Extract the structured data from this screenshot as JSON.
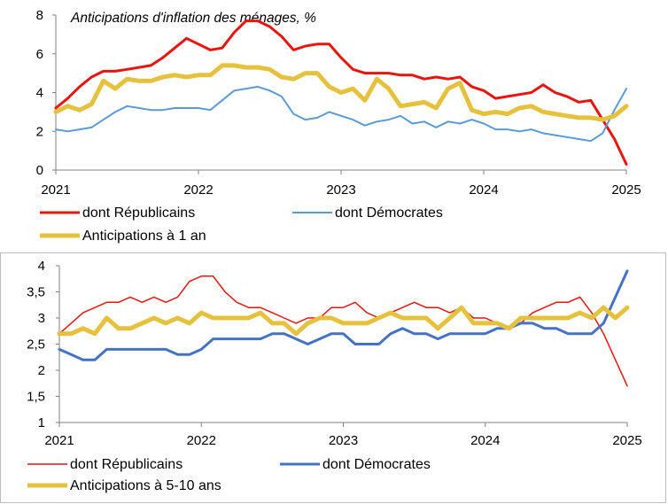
{
  "chart_data": [
    {
      "type": "line",
      "title": "Anticipations d'inflation des ménages, %",
      "x_ticks": [
        "2021",
        "2022",
        "2023",
        "2024",
        "2025"
      ],
      "xlim": [
        2021,
        2025
      ],
      "ylim": [
        0,
        8
      ],
      "y_ticks": [
        "0",
        "2",
        "4",
        "6",
        "8"
      ],
      "y_tick_values": [
        0,
        2,
        4,
        6,
        8
      ],
      "grid": false,
      "legend_position": "bottom",
      "series": [
        {
          "name": "dont Républicains",
          "color": "#e8140e",
          "width": 3,
          "values": [
            3.2,
            3.7,
            4.3,
            4.8,
            5.1,
            5.1,
            5.2,
            5.3,
            5.4,
            5.8,
            6.3,
            6.8,
            6.5,
            6.2,
            6.3,
            7.1,
            7.7,
            7.7,
            7.4,
            6.9,
            6.2,
            6.4,
            6.5,
            6.5,
            5.8,
            5.2,
            5.0,
            5.0,
            5.0,
            4.9,
            4.9,
            4.7,
            4.8,
            4.7,
            4.8,
            4.3,
            4.1,
            3.7,
            3.8,
            3.9,
            4.0,
            4.4,
            4.0,
            3.8,
            3.5,
            3.6,
            2.6,
            1.6,
            0.3
          ]
        },
        {
          "name": "dont Démocrates",
          "color": "#5b9bd5",
          "width": 2,
          "values": [
            2.1,
            2.0,
            2.1,
            2.2,
            2.6,
            3.0,
            3.3,
            3.2,
            3.1,
            3.1,
            3.2,
            3.2,
            3.2,
            3.1,
            3.6,
            4.1,
            4.2,
            4.3,
            4.1,
            3.8,
            2.9,
            2.6,
            2.7,
            3.0,
            2.8,
            2.6,
            2.3,
            2.5,
            2.6,
            2.8,
            2.4,
            2.5,
            2.2,
            2.5,
            2.4,
            2.6,
            2.4,
            2.1,
            2.1,
            2.0,
            2.1,
            1.9,
            1.8,
            1.7,
            1.6,
            1.5,
            1.9,
            3.1,
            4.2
          ]
        },
        {
          "name": "Anticipations à 1 an",
          "color": "#e6c13e",
          "width": 5,
          "values": [
            3.0,
            3.3,
            3.1,
            3.4,
            4.6,
            4.2,
            4.7,
            4.6,
            4.6,
            4.8,
            4.9,
            4.8,
            4.9,
            4.9,
            5.4,
            5.4,
            5.3,
            5.3,
            5.2,
            4.8,
            4.7,
            5.0,
            5.0,
            4.3,
            4.0,
            4.2,
            3.6,
            4.7,
            4.2,
            3.3,
            3.4,
            3.5,
            3.2,
            4.2,
            4.5,
            3.1,
            2.9,
            3.0,
            2.9,
            3.2,
            3.3,
            3.0,
            2.9,
            2.8,
            2.7,
            2.7,
            2.6,
            2.8,
            3.3
          ]
        }
      ]
    },
    {
      "type": "line",
      "title": "",
      "x_ticks": [
        "2021",
        "2022",
        "2023",
        "2024",
        "2025"
      ],
      "xlim": [
        2021,
        2025
      ],
      "ylim": [
        1,
        4
      ],
      "y_ticks": [
        "1",
        "1,5",
        "2",
        "2,5",
        "3",
        "3,5",
        "4"
      ],
      "y_tick_values": [
        1,
        1.5,
        2,
        2.5,
        3,
        3.5,
        4
      ],
      "grid": false,
      "legend_position": "bottom",
      "series": [
        {
          "name": "dont Républicains",
          "color": "#e8140e",
          "width": 1.5,
          "values": [
            2.7,
            2.9,
            3.1,
            3.2,
            3.3,
            3.3,
            3.4,
            3.3,
            3.4,
            3.3,
            3.4,
            3.7,
            3.8,
            3.8,
            3.5,
            3.3,
            3.2,
            3.2,
            3.1,
            3.0,
            2.9,
            3.0,
            3.0,
            3.2,
            3.2,
            3.3,
            3.1,
            3.0,
            3.1,
            3.2,
            3.3,
            3.2,
            3.2,
            3.1,
            3.2,
            3.0,
            3.0,
            2.9,
            2.8,
            2.9,
            3.1,
            3.2,
            3.3,
            3.3,
            3.4,
            3.1,
            2.7,
            2.2,
            1.7
          ]
        },
        {
          "name": "dont Démocrates",
          "color": "#4472c4",
          "width": 3,
          "values": [
            2.4,
            2.3,
            2.2,
            2.2,
            2.4,
            2.4,
            2.4,
            2.4,
            2.4,
            2.4,
            2.3,
            2.3,
            2.4,
            2.6,
            2.6,
            2.6,
            2.6,
            2.6,
            2.7,
            2.7,
            2.6,
            2.5,
            2.6,
            2.7,
            2.7,
            2.5,
            2.5,
            2.5,
            2.7,
            2.8,
            2.7,
            2.7,
            2.6,
            2.7,
            2.7,
            2.7,
            2.7,
            2.8,
            2.8,
            2.9,
            2.9,
            2.8,
            2.8,
            2.7,
            2.7,
            2.7,
            2.9,
            3.4,
            3.9
          ]
        },
        {
          "name": "Anticipations à 5-10 ans",
          "color": "#e6c13e",
          "width": 5,
          "values": [
            2.7,
            2.7,
            2.8,
            2.7,
            3.0,
            2.8,
            2.8,
            2.9,
            3.0,
            2.9,
            3.0,
            2.9,
            3.1,
            3.0,
            3.0,
            3.0,
            3.0,
            3.1,
            2.9,
            2.9,
            2.7,
            2.9,
            3.0,
            3.0,
            2.9,
            2.9,
            2.9,
            3.0,
            3.1,
            3.0,
            3.0,
            3.0,
            2.8,
            3.0,
            3.2,
            2.9,
            2.9,
            2.9,
            2.8,
            3.0,
            3.0,
            3.0,
            3.0,
            3.0,
            3.1,
            3.0,
            3.2,
            3.0,
            3.2
          ]
        }
      ]
    }
  ]
}
